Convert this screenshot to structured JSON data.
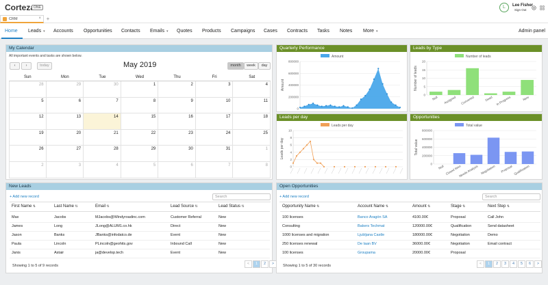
{
  "app": {
    "brand": "Corteza",
    "badge": "ONE"
  },
  "user": {
    "initial": "L",
    "name": "Lee Fisher",
    "action": "Sign Out"
  },
  "tabs": [
    {
      "label": "CRM"
    }
  ],
  "nav": {
    "items": [
      {
        "label": "Home",
        "active": true
      },
      {
        "label": "Leads",
        "caret": true
      },
      {
        "label": "Accounts"
      },
      {
        "label": "Opportunities"
      },
      {
        "label": "Contacts"
      },
      {
        "label": "Emails",
        "caret": true
      },
      {
        "label": "Quotes"
      },
      {
        "label": "Products"
      },
      {
        "label": "Campaigns"
      },
      {
        "label": "Cases"
      },
      {
        "label": "Contracts"
      },
      {
        "label": "Tasks"
      },
      {
        "label": "Notes"
      },
      {
        "label": "More",
        "caret": true
      }
    ],
    "admin": "Admin panel"
  },
  "calendar": {
    "title": "My Calendar",
    "note": "All important events and tasks are shown below.",
    "prev": "‹",
    "next": "›",
    "today": "today",
    "month_title": "May 2019",
    "views": [
      "month",
      "week",
      "day"
    ],
    "active_view": "month",
    "weekdays": [
      "Sun",
      "Mon",
      "Tue",
      "Wed",
      "Thu",
      "Fri",
      "Sat"
    ],
    "weeks": [
      [
        "28",
        "29",
        "30",
        "1",
        "2",
        "3",
        "4"
      ],
      [
        "5",
        "6",
        "7",
        "8",
        "9",
        "10",
        "11"
      ],
      [
        "12",
        "13",
        "14",
        "15",
        "16",
        "17",
        "18"
      ],
      [
        "19",
        "20",
        "21",
        "22",
        "23",
        "24",
        "25"
      ],
      [
        "26",
        "27",
        "28",
        "29",
        "30",
        "31",
        "1"
      ],
      [
        "2",
        "3",
        "4",
        "5",
        "6",
        "7",
        "8"
      ]
    ],
    "today_date": "14"
  },
  "quarterly": {
    "title": "Quarterly Performance",
    "chart_data": {
      "type": "area",
      "title": "",
      "legend": "Amount",
      "ylabel": "Amount",
      "yticks": [
        "800000",
        "600000",
        "400000",
        "200000",
        "0"
      ],
      "ylim": [
        0,
        800000
      ],
      "values": [
        20000,
        40000,
        70000,
        90000,
        60000,
        40000,
        50000,
        60000,
        40000,
        30000,
        50000,
        30000,
        10000,
        60000,
        160000,
        220000,
        330000,
        500000,
        680000,
        420000,
        250000,
        110000,
        60000,
        20000
      ],
      "color": "#4aa8ea"
    }
  },
  "leads_by_type": {
    "title": "Leads by Type",
    "chart_data": {
      "type": "bar",
      "title": "",
      "legend": "Number of leads",
      "ylabel": "Number of leads",
      "categories": [
        "Null",
        "Assigned",
        "Converted",
        "Dead",
        "In Progress",
        "New"
      ],
      "values": [
        2,
        3,
        16,
        1,
        2,
        9
      ],
      "yticks": [
        "20",
        "15",
        "10",
        "5",
        "0"
      ],
      "ylim": [
        0,
        20
      ],
      "color": "#8fe07a"
    }
  },
  "leads_per_day": {
    "title": "Leads per day",
    "chart_data": {
      "type": "line",
      "title": "",
      "legend": "Leads per day",
      "ylabel": "Leads per day",
      "yticks": [
        "10",
        "8",
        "6",
        "4",
        "2",
        "0"
      ],
      "ylim": [
        0,
        10
      ],
      "values": [
        1,
        3,
        4,
        5,
        6,
        7,
        2,
        1,
        1,
        0,
        0,
        0,
        0,
        0,
        0,
        0,
        0,
        0,
        0,
        0,
        0,
        0,
        0,
        0,
        0,
        0,
        0,
        0,
        0,
        0,
        0,
        0,
        0
      ],
      "color": "#f0a057"
    }
  },
  "opportunities_chart": {
    "title": "Opportunities",
    "chart_data": {
      "type": "bar",
      "title": "",
      "legend": "Total value",
      "ylabel": "Total value",
      "categories": [
        "Null",
        "Closed Won",
        "Needs Analysis",
        "Negotiation",
        "Proposal",
        "Qualification"
      ],
      "values": [
        0,
        260000,
        220000,
        630000,
        290000,
        300000
      ],
      "yticks": [
        "800000",
        "600000",
        "400000",
        "200000",
        "0"
      ],
      "ylim": [
        0,
        800000
      ],
      "color": "#7b96f2"
    }
  },
  "new_leads": {
    "title": "New Leads",
    "add": "+ Add new record",
    "search_placeholder": "Search",
    "columns": [
      "First Name",
      "Last Name",
      "Email",
      "Lead Source",
      "Lead Status"
    ],
    "rows": [
      [
        "Max",
        "Jacobs",
        "MJacobs@Windyroadinc.com",
        "Customer Referral",
        "New"
      ],
      [
        "James",
        "Long",
        "JLong@ALUM1.co.hk",
        "Direct",
        "New"
      ],
      [
        "Jason",
        "Banks",
        "JBanks@infodatco.de",
        "Event",
        "New"
      ],
      [
        "Paula",
        "Lincoln",
        "PLincoln@geohits.gov",
        "Inbound Call",
        "New"
      ],
      [
        "Janis",
        "Astair",
        "ja@develop.tech",
        "Event",
        "New"
      ]
    ],
    "footer": "Showing 1 to 5 of 9 records",
    "pages": [
      "<",
      "1",
      "2",
      ">"
    ],
    "current_page": "1"
  },
  "open_opps": {
    "title": "Open Opportunities",
    "add": "+ Add new record",
    "search_placeholder": "Search",
    "columns": [
      "Opportunity Name",
      "Account Name",
      "Amount",
      "Stage",
      "Next Step"
    ],
    "rows": [
      [
        "100 licenses",
        "Banco Aragón SA",
        "4100.00€",
        "Proposal",
        "Call John"
      ],
      [
        "Consulting",
        "Bakers Techmat",
        "120000.00€",
        "Qualification",
        "Send datasheet"
      ],
      [
        "1000 licenses and migration",
        "Ljubljana Castle",
        "180000.00€",
        "Negotiation",
        "Demo"
      ],
      [
        "250 licenses renewal",
        "De laan BV",
        "36000.00€",
        "Negotiation",
        "Email contract"
      ],
      [
        "100 licenses",
        "Groupama",
        "20000.00€",
        "Proposal",
        ""
      ]
    ],
    "footer": "Showing 1 to 5 of 30 records",
    "pages": [
      "<",
      "1",
      "2",
      "3",
      "4",
      "5",
      "6",
      ">"
    ],
    "current_page": "1"
  }
}
